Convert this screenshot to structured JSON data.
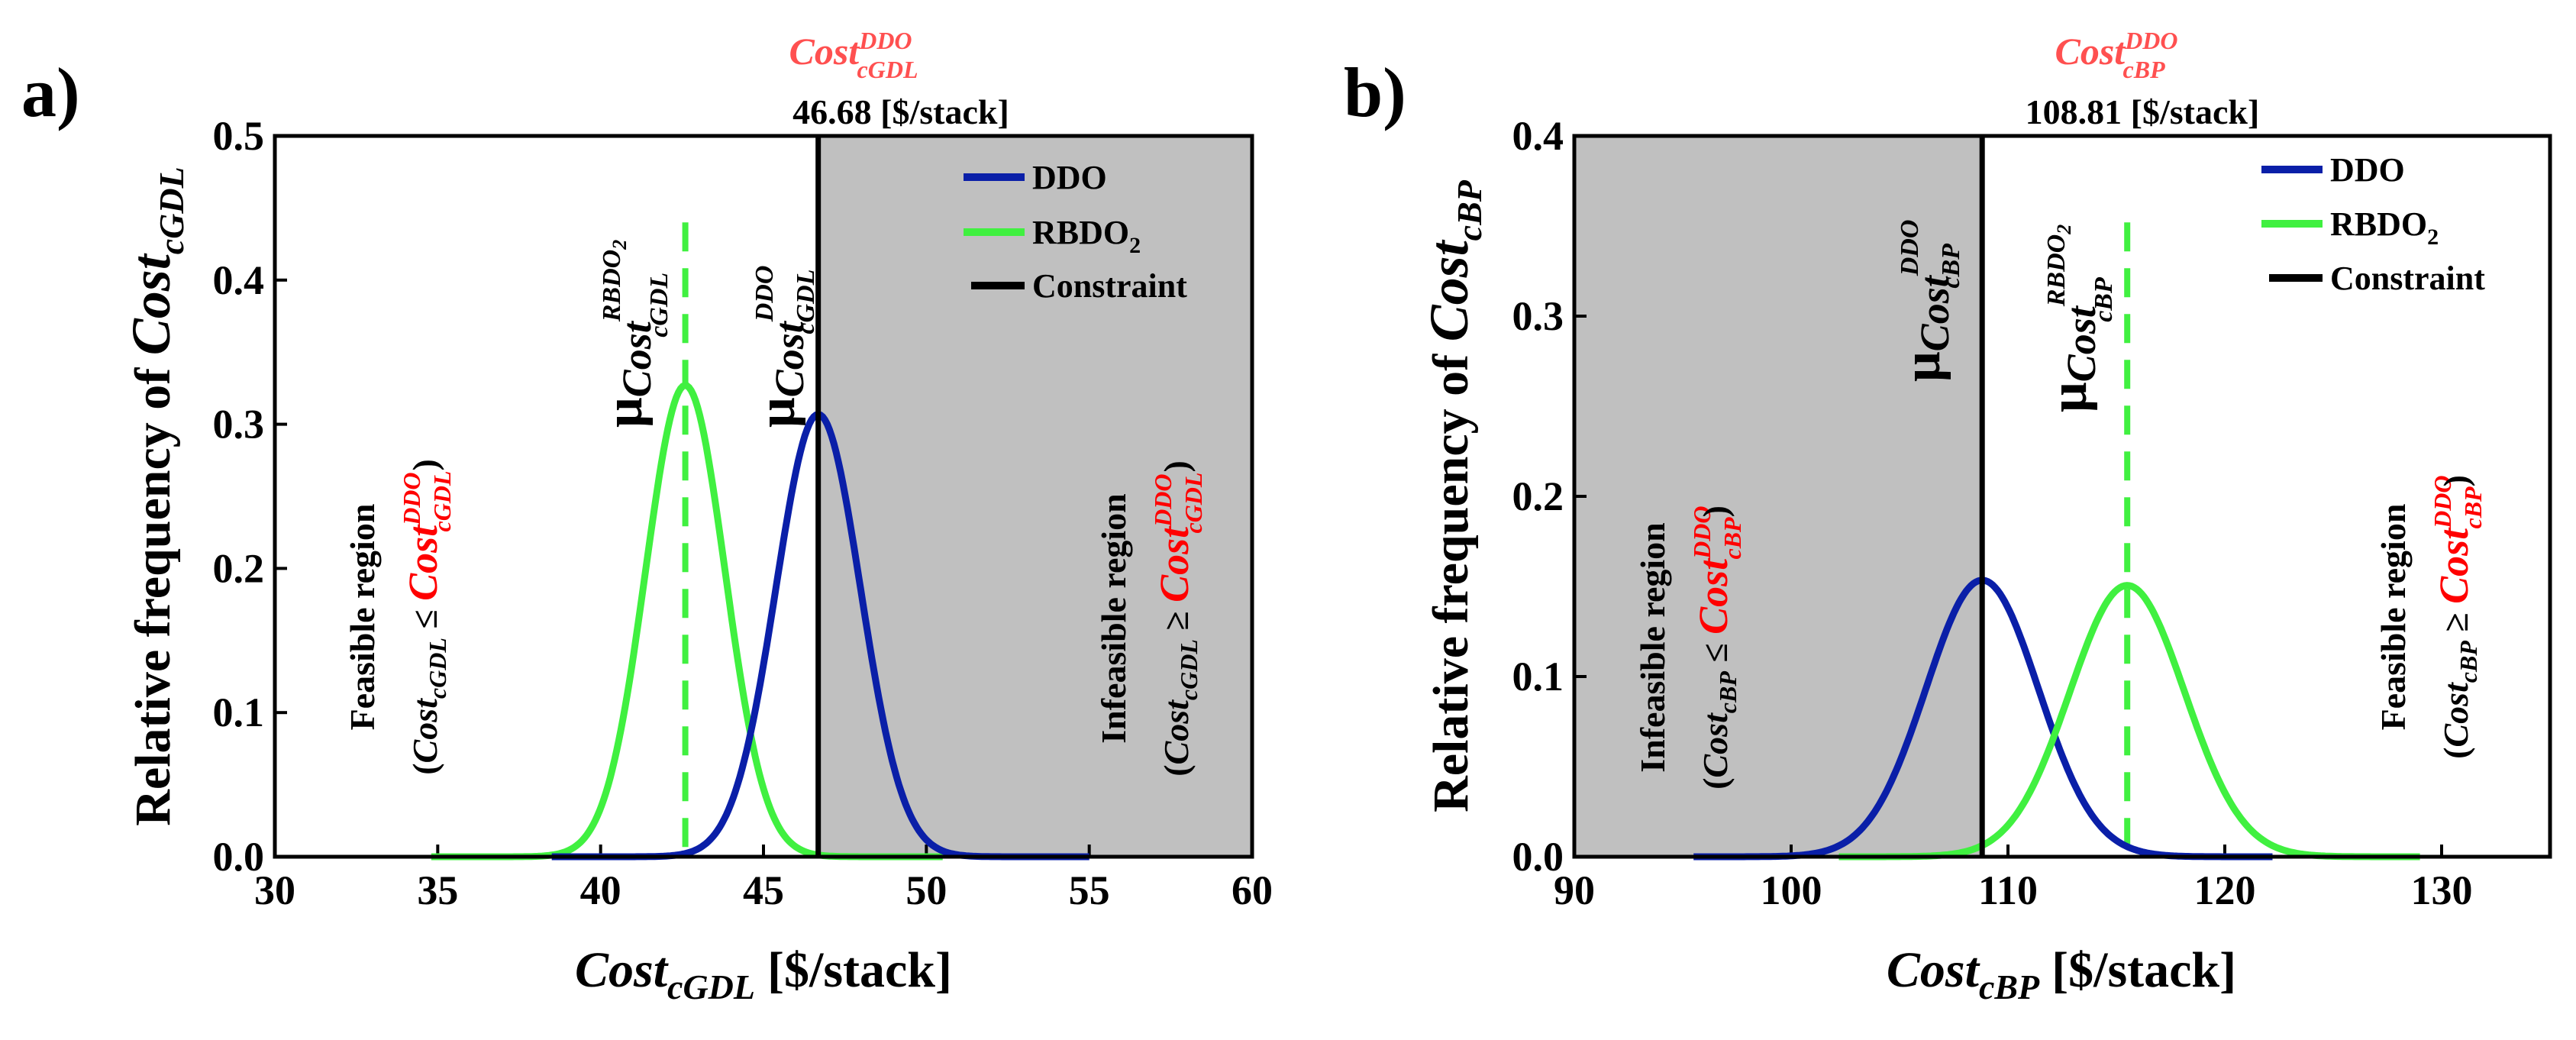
{
  "chart_data": [
    {
      "panel_label": "a)",
      "type": "line",
      "xlabel_main": "Cost",
      "xlabel_sub": "cGDL",
      "xlabel_unit": "[$/stack]",
      "ylabel_text": "Relative frequency of ",
      "ylabel_main": "Cost",
      "ylabel_sub": "cGDL",
      "xlim": [
        30,
        60
      ],
      "ylim": [
        0,
        0.5
      ],
      "xticks": [
        30,
        35,
        40,
        45,
        50,
        55,
        60
      ],
      "yticks": [
        0.0,
        0.1,
        0.2,
        0.3,
        0.4,
        0.5
      ],
      "ytick_labels": [
        "0.0",
        "0.1",
        "0.2",
        "0.3",
        "0.4",
        "0.5"
      ],
      "series": [
        {
          "name": "DDO",
          "color": "#0a1fa8",
          "mean": 46.68,
          "sigma": 1.3,
          "xmin": 38.5,
          "xmax": 55
        },
        {
          "name": "RBDO",
          "color": "#40f040",
          "mean": 42.6,
          "sigma": 1.22,
          "xmin": 34.8,
          "xmax": 50.5
        }
      ],
      "legend": [
        {
          "label": "DDO",
          "sub": "",
          "color": "#0a1fa8"
        },
        {
          "label": "RBDO",
          "sub": "2",
          "color": "#40f040"
        },
        {
          "label": "Constraint",
          "sub": "",
          "color": "#000000"
        }
      ],
      "constraint": {
        "value": 46.68,
        "label": "46.68 [$/stack]",
        "title_main": "Cost",
        "title_sup": "DDO",
        "title_sub": "cGDL",
        "color": "#ff5050"
      },
      "rbdo_mean_line": 42.6,
      "shaded_region": [
        46.68,
        60
      ],
      "shade_color": "#c0c0c0",
      "annotations": {
        "mu_ddo": {
          "mu": "μ",
          "main": "Cost",
          "sup": "DDO",
          "sub": "cGDL"
        },
        "mu_rbdo": {
          "mu": "μ",
          "main": "Cost",
          "sup": "RBDO",
          "sup2": "2",
          "sub": "cGDL"
        },
        "left_region": {
          "line1": "Feasible region",
          "open": "(",
          "cost": "Cost",
          "sub": "cGDL",
          "op": " ≤ ",
          "rcost": "Cost",
          "rsup": "DDO",
          "rsub": "cGDL",
          "close": ")"
        },
        "right_region": {
          "line1": "Infeasible region",
          "open": "(",
          "cost": "Cost",
          "sub": "cGDL",
          "op": " ≥ ",
          "rcost": "Cost",
          "rsup": "DDO",
          "rsub": "cGDL",
          "close": ")"
        }
      }
    },
    {
      "panel_label": "b)",
      "type": "line",
      "xlabel_main": "Cost",
      "xlabel_sub": "cBP",
      "xlabel_unit": "[$/stack]",
      "ylabel_text": "Relative frequency of ",
      "ylabel_main": "Cost",
      "ylabel_sub": "cBP",
      "xlim": [
        90,
        135
      ],
      "ylim": [
        0,
        0.4
      ],
      "xticks": [
        90,
        100,
        110,
        120,
        130
      ],
      "yticks": [
        0.0,
        0.1,
        0.2,
        0.3,
        0.4
      ],
      "ytick_labels": [
        "0.0",
        "0.1",
        "0.2",
        "0.3",
        "0.4"
      ],
      "series": [
        {
          "name": "DDO",
          "color": "#0a1fa8",
          "mean": 108.81,
          "sigma": 2.6,
          "xmin": 95.5,
          "xmax": 122.2
        },
        {
          "name": "RBDO",
          "color": "#40f040",
          "mean": 115.5,
          "sigma": 2.65,
          "xmin": 102.2,
          "xmax": 129
        }
      ],
      "legend": [
        {
          "label": "DDO",
          "sub": "",
          "color": "#0a1fa8"
        },
        {
          "label": "RBDO",
          "sub": "2",
          "color": "#40f040"
        },
        {
          "label": "Constraint",
          "sub": "",
          "color": "#000000"
        }
      ],
      "constraint": {
        "value": 108.81,
        "label": "108.81 [$/stack]",
        "title_main": "Cost",
        "title_sup": "DDO",
        "title_sub": "cBP",
        "color": "#ff5050"
      },
      "rbdo_mean_line": 115.5,
      "shaded_region": [
        90,
        108.81
      ],
      "shade_color": "#c0c0c0",
      "annotations": {
        "mu_ddo": {
          "mu": "μ",
          "main": "Cost",
          "sup": "DDO",
          "sub": "cBP"
        },
        "mu_rbdo": {
          "mu": "μ",
          "main": "Cost",
          "sup": "RBDO",
          "sup2": "2",
          "sub": "cBP"
        },
        "left_region": {
          "line1": "Infeasible region",
          "open": "(",
          "cost": "Cost",
          "sub": "cBP",
          "op": " ≤ ",
          "rcost": "Cost",
          "rsup": "DDO",
          "rsub": "cBP",
          "close": ")"
        },
        "right_region": {
          "line1": "Feasible region",
          "open": "(",
          "cost": "Cost",
          "sub": "cBP",
          "op": " ≥ ",
          "rcost": "Cost",
          "rsup": "DDO",
          "rsub": "cBP",
          "close": ")"
        }
      }
    }
  ]
}
